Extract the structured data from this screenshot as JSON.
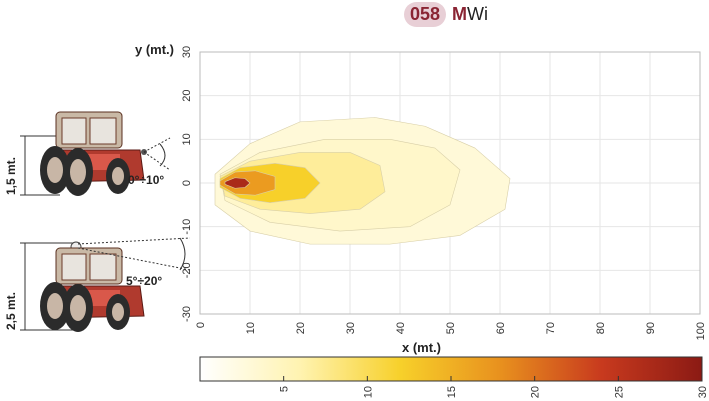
{
  "header": {
    "code": "058",
    "suffix_m": "M",
    "suffix_rest": "Wi"
  },
  "axes": {
    "ylabel": "y (mt.)",
    "xlabel": "x (mt.)",
    "xticks": [
      "0",
      "10",
      "20",
      "30",
      "40",
      "50",
      "60",
      "70",
      "80",
      "90",
      "100"
    ],
    "yticks": [
      "30",
      "20",
      "10",
      "0",
      "-10",
      "-20",
      "-30"
    ]
  },
  "tractors": [
    {
      "height": "1,5 mt.",
      "angle": "0°÷10°"
    },
    {
      "height": "2,5 mt.",
      "angle": "5°÷20°"
    }
  ],
  "colorbar": {
    "ticks": [
      "5",
      "10",
      "15",
      "20",
      "25",
      "30"
    ],
    "range": [
      0,
      30
    ],
    "colors": [
      "#ffffff",
      "#fff3b0",
      "#f7d02a",
      "#e8901e",
      "#c83a1e",
      "#8b1a14"
    ]
  },
  "chart_data": {
    "type": "heatmap",
    "xlim": [
      0,
      100
    ],
    "ylim": [
      -30,
      30
    ],
    "xlabel": "x (mt.)",
    "ylabel": "y (mt.)",
    "contours": [
      {
        "level": 1,
        "points": [
          [
            3,
            2
          ],
          [
            10,
            9
          ],
          [
            20,
            14
          ],
          [
            35,
            15
          ],
          [
            45,
            13
          ],
          [
            55,
            8
          ],
          [
            62,
            1
          ],
          [
            61,
            -6
          ],
          [
            52,
            -12
          ],
          [
            38,
            -14
          ],
          [
            22,
            -14
          ],
          [
            10,
            -11
          ],
          [
            3,
            -5
          ]
        ]
      },
      {
        "level": 2,
        "points": [
          [
            4,
            2
          ],
          [
            12,
            7
          ],
          [
            25,
            10
          ],
          [
            38,
            10
          ],
          [
            47,
            8
          ],
          [
            52,
            3
          ],
          [
            50,
            -5
          ],
          [
            42,
            -10
          ],
          [
            28,
            -11
          ],
          [
            14,
            -9
          ],
          [
            5,
            -4
          ]
        ]
      },
      {
        "level": 5,
        "points": [
          [
            4,
            1.5
          ],
          [
            10,
            5
          ],
          [
            20,
            7
          ],
          [
            30,
            7
          ],
          [
            36,
            4
          ],
          [
            37,
            -2
          ],
          [
            32,
            -6
          ],
          [
            22,
            -7
          ],
          [
            12,
            -6
          ],
          [
            5,
            -3
          ]
        ]
      },
      {
        "level": 10,
        "points": [
          [
            4,
            1
          ],
          [
            8,
            3.5
          ],
          [
            15,
            4.5
          ],
          [
            21,
            3.5
          ],
          [
            24,
            0
          ],
          [
            21,
            -3.5
          ],
          [
            14,
            -4.5
          ],
          [
            8,
            -3.5
          ],
          [
            4,
            -1
          ]
        ]
      },
      {
        "level": 15,
        "points": [
          [
            4,
            0.5
          ],
          [
            7,
            2.5
          ],
          [
            11,
            2.8
          ],
          [
            15,
            1.5
          ],
          [
            15,
            -1.5
          ],
          [
            11,
            -2.8
          ],
          [
            7,
            -2.5
          ],
          [
            4,
            -0.5
          ]
        ]
      },
      {
        "level": 25,
        "points": [
          [
            5,
            0.3
          ],
          [
            7,
            1.2
          ],
          [
            9,
            1
          ],
          [
            10,
            0
          ],
          [
            9,
            -1
          ],
          [
            7,
            -1.2
          ],
          [
            5,
            -0.3
          ]
        ]
      }
    ]
  }
}
